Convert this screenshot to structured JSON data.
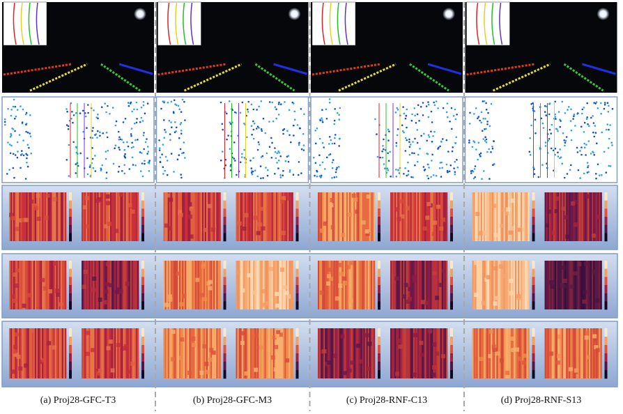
{
  "captions": [
    "(a) Proj28-GFC-T3",
    "(b) Proj28-GFC-M3",
    "(c) Proj28-RNF-C13",
    "(d) Proj28-RNF-S13"
  ]
}
